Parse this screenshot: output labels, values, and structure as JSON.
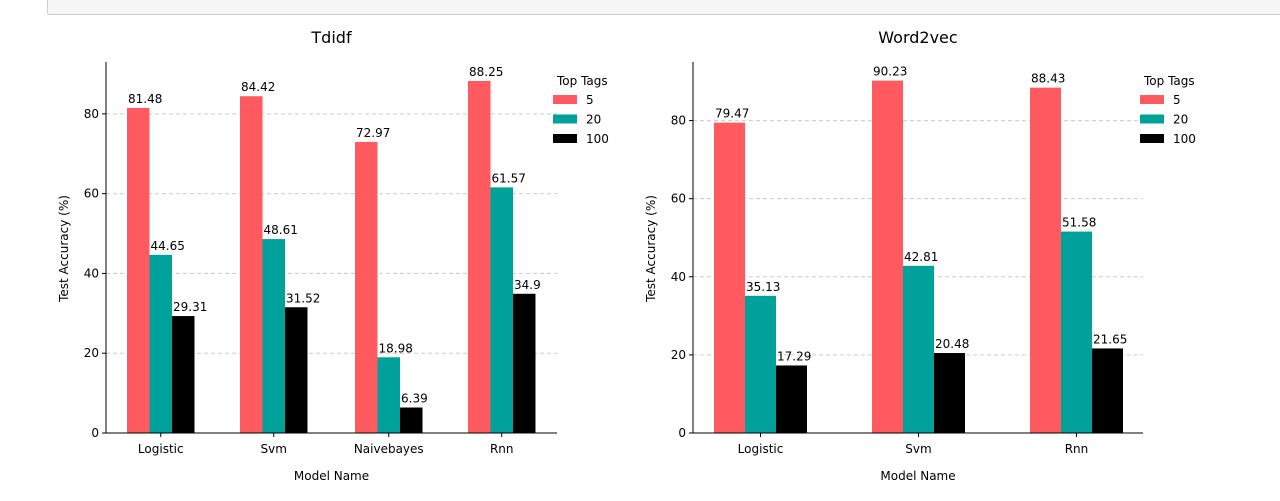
{
  "chart_data": [
    {
      "type": "bar",
      "title": "Tdidf",
      "xlabel": "Model Name",
      "ylabel": "Test Accuracy (%)",
      "ylim": [
        0,
        93
      ],
      "yticks": [
        0,
        20,
        40,
        60,
        80
      ],
      "categories": [
        "Logistic",
        "Svm",
        "Naivebayes",
        "Rnn"
      ],
      "series": [
        {
          "name": "5",
          "values": [
            81.48,
            84.42,
            72.97,
            88.25
          ]
        },
        {
          "name": "20",
          "values": [
            44.65,
            48.61,
            18.98,
            61.57
          ]
        },
        {
          "name": "100",
          "values": [
            29.31,
            31.52,
            6.39,
            34.9
          ]
        }
      ],
      "legend_title": "Top Tags",
      "legend_position": "outside-top-right",
      "grid": "y-dashed"
    },
    {
      "type": "bar",
      "title": "Word2vec",
      "xlabel": "Model Name",
      "ylabel": "Test Accuracy (%)",
      "ylim": [
        0,
        95
      ],
      "yticks": [
        0,
        20,
        40,
        60,
        80
      ],
      "categories": [
        "Logistic",
        "Svm",
        "Rnn"
      ],
      "series": [
        {
          "name": "5",
          "values": [
            79.47,
            90.23,
            88.43
          ]
        },
        {
          "name": "20",
          "values": [
            35.13,
            42.81,
            51.58
          ]
        },
        {
          "name": "100",
          "values": [
            17.29,
            20.48,
            21.65
          ]
        }
      ],
      "legend_title": "Top Tags",
      "legend_position": "outside-top-right",
      "grid": "y-dashed"
    }
  ],
  "colors": {
    "series": [
      "#fe5a5f",
      "#00a19a",
      "#000000"
    ],
    "grid": "#cccccc",
    "axis": "#000000",
    "text": "#000000"
  }
}
